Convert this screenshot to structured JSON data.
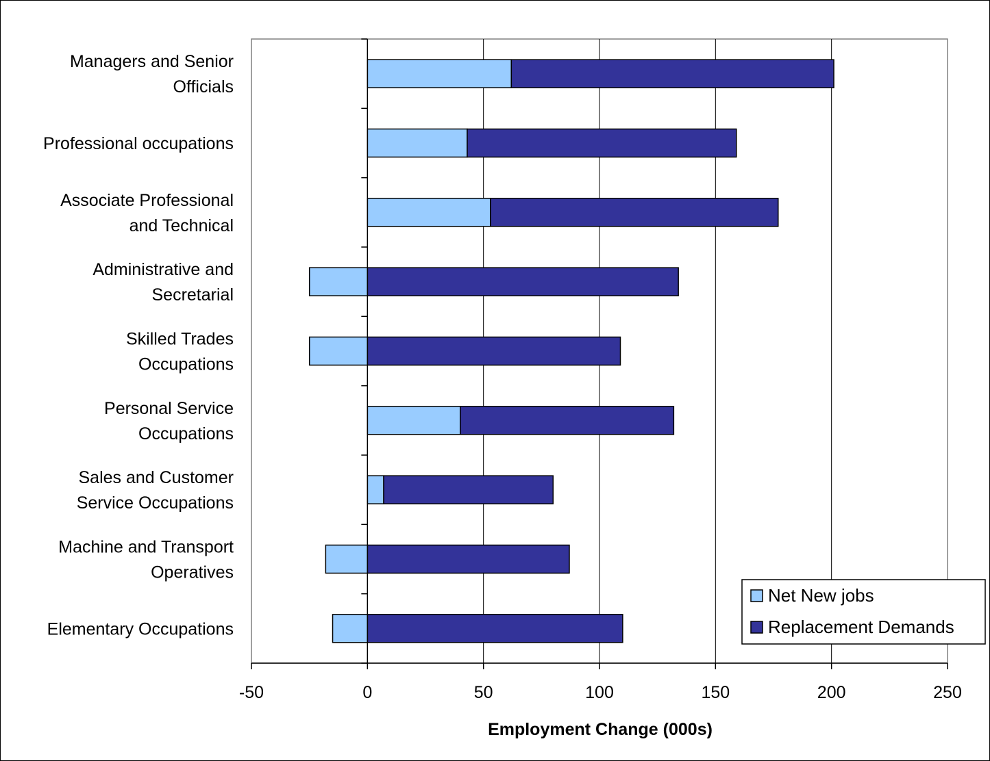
{
  "chart_data": {
    "type": "bar",
    "orientation": "horizontal",
    "stacked": true,
    "title": "",
    "xlabel": "Employment Change (000s)",
    "ylabel": "",
    "xlim": [
      -50,
      250
    ],
    "x_ticks": [
      "-50",
      "0",
      "50",
      "100",
      "150",
      "200",
      "250"
    ],
    "grid": "vertical",
    "legend_position": "bottom-right",
    "categories": [
      "Managers and Senior Officials",
      "Professional occupations",
      "Associate Professional and Technical",
      "Administrative and Secretarial",
      "Skilled Trades Occupations",
      "Personal Service Occupations",
      "Sales and Customer Service Occupations",
      "Machine and Transport Operatives",
      "Elementary Occupations"
    ],
    "category_label_lines": [
      [
        "Managers and Senior",
        "Officials"
      ],
      [
        "Professional occupations"
      ],
      [
        "Associate Professional",
        "and Technical"
      ],
      [
        "Administrative and",
        "Secretarial"
      ],
      [
        "Skilled Trades",
        "Occupations"
      ],
      [
        "Personal Service",
        "Occupations"
      ],
      [
        "Sales and Customer",
        "Service Occupations"
      ],
      [
        "Machine and Transport",
        "Operatives"
      ],
      [
        "Elementary Occupations"
      ]
    ],
    "series": [
      {
        "name": "Net New jobs",
        "color": "#99CCFF",
        "values": [
          62,
          43,
          53,
          -25,
          -25,
          40,
          7,
          -18,
          -15
        ]
      },
      {
        "name": "Replacement Demands",
        "color": "#333399",
        "values": [
          139,
          116,
          124,
          134,
          109,
          92,
          73,
          87,
          110
        ]
      }
    ]
  }
}
